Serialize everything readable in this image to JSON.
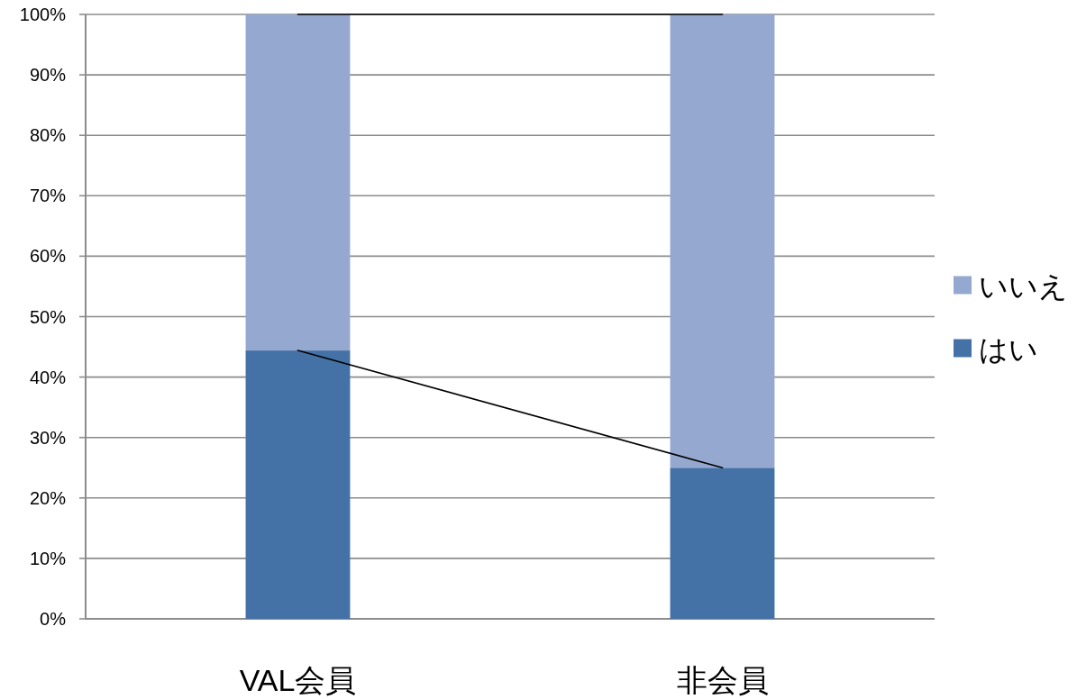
{
  "chart_data": {
    "type": "bar",
    "stacked": true,
    "categories": [
      "VAL会員",
      "非会員"
    ],
    "series": [
      {
        "name": "はい",
        "color": "#4472a6",
        "values": [
          44.4,
          25.0
        ]
      },
      {
        "name": "いいえ",
        "color": "#95a9d0",
        "values": [
          55.6,
          75.0
        ]
      },
      {
        "type": "line",
        "color": "#000000",
        "values": [
          44.4,
          25.0
        ]
      },
      {
        "type": "line",
        "color": "#000000",
        "values": [
          100,
          100
        ]
      }
    ],
    "ylim": [
      0,
      100
    ],
    "yticks": [
      {
        "value": 0,
        "label": "0%"
      },
      {
        "value": 10,
        "label": "10%"
      },
      {
        "value": 20,
        "label": "20%"
      },
      {
        "value": 30,
        "label": "30%"
      },
      {
        "value": 40,
        "label": "40%"
      },
      {
        "value": 50,
        "label": "50%"
      },
      {
        "value": 60,
        "label": "60%"
      },
      {
        "value": 70,
        "label": "70%"
      },
      {
        "value": 80,
        "label": "80%"
      },
      {
        "value": 90,
        "label": "90%"
      },
      {
        "value": 100,
        "label": "100%"
      }
    ],
    "grid": "y",
    "legend": "right"
  }
}
